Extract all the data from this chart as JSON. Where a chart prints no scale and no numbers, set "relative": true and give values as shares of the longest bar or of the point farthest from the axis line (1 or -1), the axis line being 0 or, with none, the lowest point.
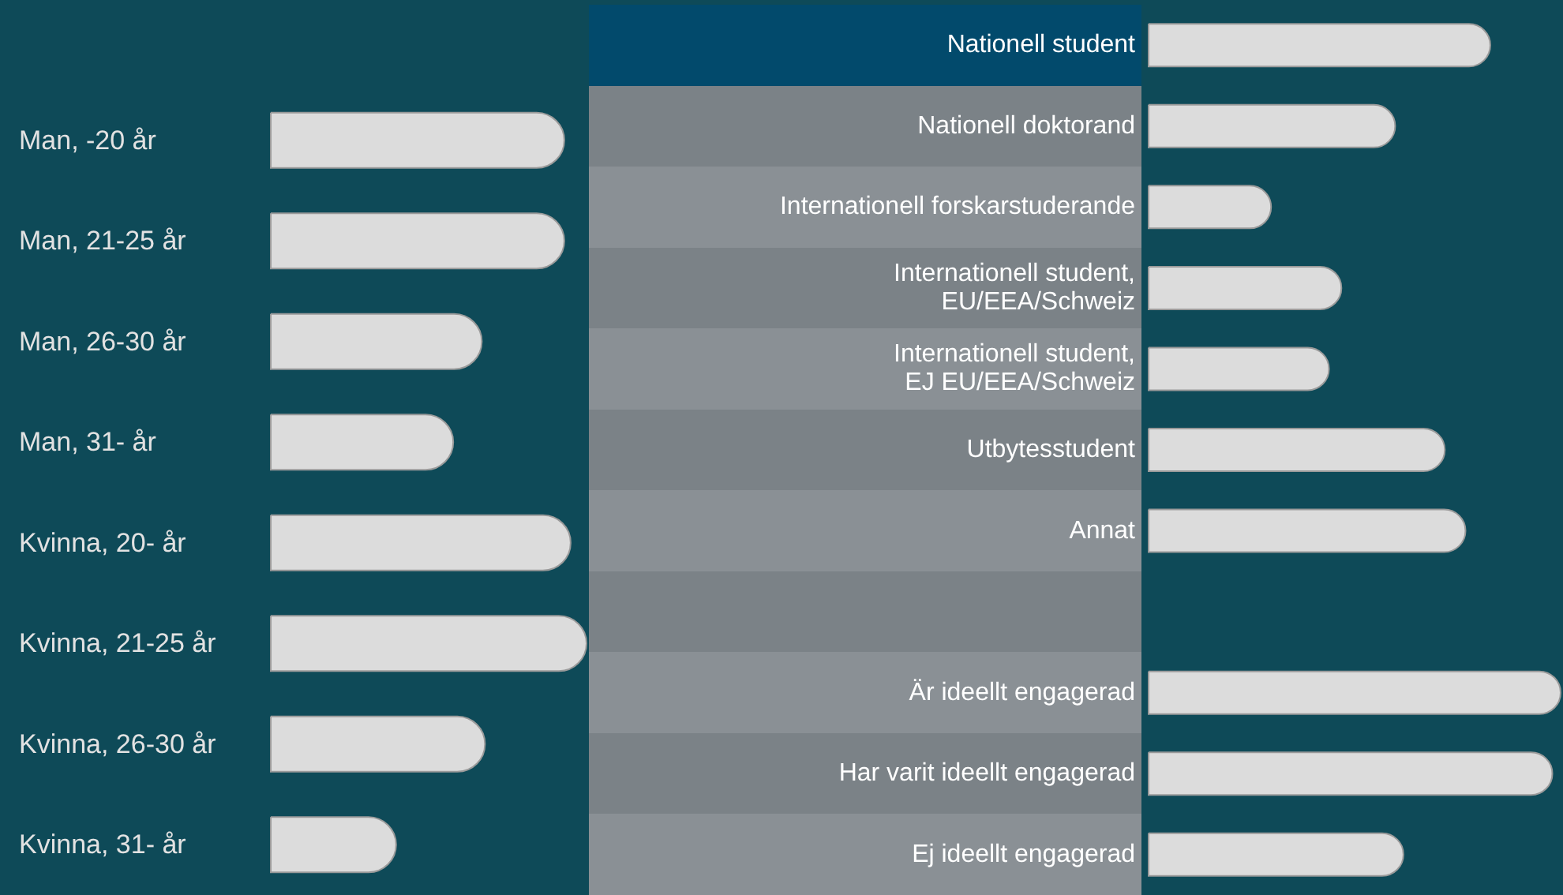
{
  "chart_data": [
    {
      "type": "bar",
      "orientation": "horizontal",
      "relative": true,
      "color": "#dcdcdc",
      "categories": [
        "Man, -20 år",
        "Man, 21-25 år",
        "Man, 26-30 år",
        "Man, 31- år",
        "Kvinna, 20- år",
        "Kvinna, 21-25 år",
        "Kvinna, 26-30 år",
        "Kvinna, 31- år"
      ],
      "values": [
        0.93,
        0.93,
        0.67,
        0.58,
        0.95,
        1,
        0.68,
        0.4
      ]
    },
    {
      "type": "bar",
      "orientation": "horizontal",
      "relative": true,
      "color": "#dcdcdc",
      "categories": [
        "Nationell student",
        "Nationell doktorand",
        "Internationell forskarstuderande",
        "Internationell student,\nEU/EEA/Schweiz",
        "Internationell student,\nEJ EU/EEA/Schweiz",
        "Utbytesstudent",
        "Annat",
        null,
        "Är ideellt engagerad",
        "Har varit ideellt engagerad",
        "Ej ideellt engagerad"
      ],
      "values": [
        0.83,
        0.6,
        0.3,
        0.47,
        0.44,
        0.72,
        0.77,
        null,
        1,
        0.98,
        0.62
      ]
    }
  ]
}
